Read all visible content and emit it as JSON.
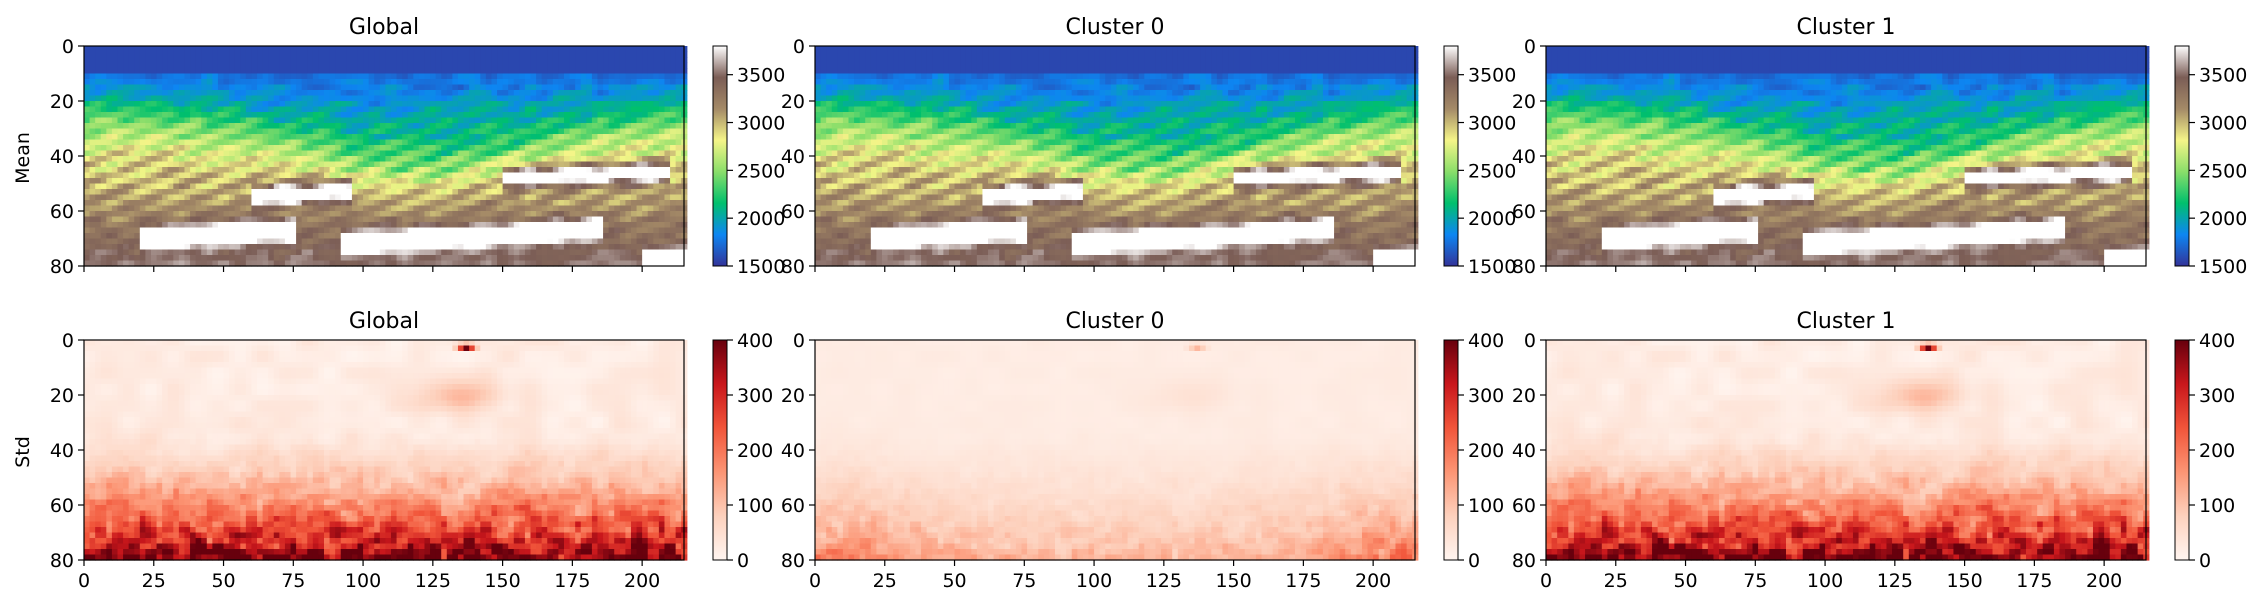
{
  "colors": {
    "mean_colormap": "terrain",
    "std_colormap": "Reds",
    "mean_stops": [
      "#333399",
      "#0d86f2",
      "#00c06d",
      "#8ade6a",
      "#f5f588",
      "#a48a67",
      "#7b5d56",
      "#ffffff"
    ],
    "std_stops": [
      "#fff5f0",
      "#fdd1bd",
      "#fc9574",
      "#f1553a",
      "#c9171c",
      "#67000d"
    ]
  },
  "ylabels": {
    "mean": "Mean",
    "std": "Std"
  },
  "chart_data": [
    {
      "type": "heatmap",
      "row": "Mean",
      "title": "Global",
      "xlim": [
        0,
        215
      ],
      "ylim": [
        80,
        0
      ],
      "yticks": [
        "0",
        "20",
        "40",
        "60",
        "80"
      ],
      "xticks": [],
      "colorbar": {
        "range": [
          1500,
          3800
        ],
        "ticks": [
          "1500",
          "2000",
          "2500",
          "3000",
          "3500"
        ]
      }
    },
    {
      "type": "heatmap",
      "row": "Mean",
      "title": "Cluster 0",
      "xlim": [
        0,
        215
      ],
      "ylim": [
        80,
        0
      ],
      "yticks": [
        "0",
        "20",
        "40",
        "60",
        "80"
      ],
      "xticks": [],
      "colorbar": {
        "range": [
          1500,
          3800
        ],
        "ticks": [
          "1500",
          "2000",
          "2500",
          "3000",
          "3500"
        ]
      }
    },
    {
      "type": "heatmap",
      "row": "Mean",
      "title": "Cluster 1",
      "xlim": [
        0,
        215
      ],
      "ylim": [
        80,
        0
      ],
      "yticks": [
        "0",
        "20",
        "40",
        "60",
        "80"
      ],
      "xticks": [],
      "colorbar": {
        "range": [
          1500,
          3800
        ],
        "ticks": [
          "1500",
          "2000",
          "2500",
          "3000",
          "3500"
        ]
      }
    },
    {
      "type": "heatmap",
      "row": "Std",
      "title": "Global",
      "xlim": [
        0,
        215
      ],
      "ylim": [
        80,
        0
      ],
      "yticks": [
        "0",
        "20",
        "40",
        "60",
        "80"
      ],
      "xticks": [
        "0",
        "25",
        "50",
        "75",
        "100",
        "125",
        "150",
        "175",
        "200"
      ],
      "colorbar": {
        "range": [
          0,
          400
        ],
        "ticks": [
          "0",
          "100",
          "200",
          "300",
          "400"
        ]
      }
    },
    {
      "type": "heatmap",
      "row": "Std",
      "title": "Cluster 0",
      "xlim": [
        0,
        215
      ],
      "ylim": [
        80,
        0
      ],
      "yticks": [
        "0",
        "20",
        "40",
        "60",
        "80"
      ],
      "xticks": [
        "0",
        "25",
        "50",
        "75",
        "100",
        "125",
        "150",
        "175",
        "200"
      ],
      "colorbar": {
        "range": [
          0,
          400
        ],
        "ticks": [
          "0",
          "100",
          "200",
          "300",
          "400"
        ]
      }
    },
    {
      "type": "heatmap",
      "row": "Std",
      "title": "Cluster 1",
      "xlim": [
        0,
        215
      ],
      "ylim": [
        80,
        0
      ],
      "yticks": [
        "0",
        "20",
        "40",
        "60",
        "80"
      ],
      "xticks": [
        "0",
        "25",
        "50",
        "75",
        "100",
        "125",
        "150",
        "175",
        "200"
      ],
      "colorbar": {
        "range": [
          0,
          400
        ],
        "ticks": [
          "0",
          "100",
          "200",
          "300",
          "400"
        ]
      }
    }
  ]
}
